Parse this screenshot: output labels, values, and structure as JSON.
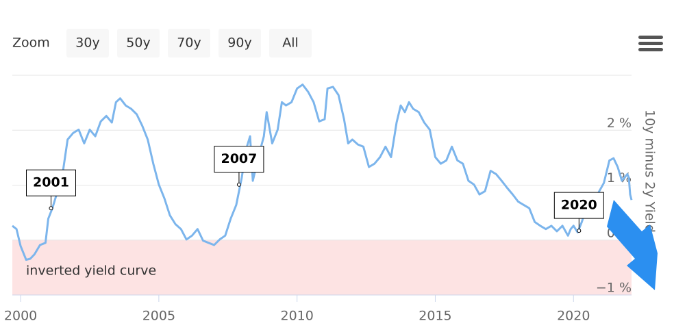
{
  "toolbar": {
    "label": "Zoom",
    "buttons": [
      "30y",
      "50y",
      "70y",
      "90y",
      "All"
    ]
  },
  "chart_data": {
    "type": "line",
    "y_axis_title": "10y minus 2y Yield",
    "color": "#7cb5ec",
    "x": [
      1999.7,
      1999.85,
      2000.0,
      2000.2,
      2000.35,
      2000.5,
      2000.7,
      2000.9,
      2001.0,
      2001.15,
      2001.3,
      2001.5,
      2001.7,
      2001.9,
      2002.1,
      2002.3,
      2002.5,
      2002.7,
      2002.9,
      2003.1,
      2003.3,
      2003.45,
      2003.6,
      2003.8,
      2004.0,
      2004.2,
      2004.4,
      2004.6,
      2004.8,
      2005.0,
      2005.2,
      2005.4,
      2005.6,
      2005.8,
      2006.0,
      2006.2,
      2006.4,
      2006.6,
      2006.8,
      2007.0,
      2007.2,
      2007.4,
      2007.6,
      2007.8,
      2008.0,
      2008.15,
      2008.3,
      2008.4,
      2008.6,
      2008.8,
      2008.9,
      2009.1,
      2009.3,
      2009.45,
      2009.6,
      2009.8,
      2010.0,
      2010.2,
      2010.4,
      2010.6,
      2010.8,
      2011.0,
      2011.1,
      2011.3,
      2011.5,
      2011.7,
      2011.85,
      2012.0,
      2012.2,
      2012.4,
      2012.6,
      2012.8,
      2013.0,
      2013.2,
      2013.4,
      2013.6,
      2013.75,
      2013.9,
      2014.05,
      2014.2,
      2014.4,
      2014.6,
      2014.8,
      2015.0,
      2015.2,
      2015.4,
      2015.6,
      2015.8,
      2016.0,
      2016.2,
      2016.4,
      2016.6,
      2016.8,
      2017.0,
      2017.2,
      2017.4,
      2017.6,
      2017.8,
      2018.0,
      2018.2,
      2018.4,
      2018.6,
      2018.8,
      2019.0,
      2019.2,
      2019.4,
      2019.6,
      2019.8,
      2019.9,
      2020.0,
      2020.15,
      2020.3,
      2020.5,
      2020.7,
      2020.9,
      2021.1,
      2021.3,
      2021.45,
      2021.6,
      2021.75,
      2021.85,
      2021.95,
      2022.0,
      2022.05,
      2022.1
    ],
    "values": [
      0.26,
      0.2,
      -0.11,
      -0.36,
      -0.34,
      -0.26,
      -0.09,
      -0.05,
      0.39,
      0.58,
      0.83,
      1.14,
      1.83,
      1.95,
      2.01,
      1.76,
      2.01,
      1.89,
      2.16,
      2.26,
      2.14,
      2.51,
      2.58,
      2.45,
      2.39,
      2.29,
      2.08,
      1.83,
      1.39,
      1.01,
      0.76,
      0.45,
      0.29,
      0.2,
      0.01,
      0.08,
      0.2,
      -0.01,
      -0.05,
      -0.09,
      0.01,
      0.08,
      0.39,
      0.64,
      1.14,
      1.64,
      1.89,
      1.08,
      1.51,
      1.89,
      2.33,
      1.76,
      2.01,
      2.51,
      2.45,
      2.51,
      2.76,
      2.83,
      2.7,
      2.51,
      2.16,
      2.2,
      2.76,
      2.79,
      2.64,
      2.2,
      1.76,
      1.83,
      1.74,
      1.7,
      1.33,
      1.39,
      1.51,
      1.7,
      1.51,
      2.14,
      2.45,
      2.33,
      2.51,
      2.39,
      2.33,
      2.14,
      2.01,
      1.51,
      1.39,
      1.45,
      1.7,
      1.45,
      1.39,
      1.08,
      1.01,
      0.83,
      0.89,
      1.26,
      1.2,
      1.08,
      0.95,
      0.83,
      0.7,
      0.64,
      0.58,
      0.33,
      0.26,
      0.2,
      0.26,
      0.16,
      0.26,
      0.08,
      0.2,
      0.26,
      0.14,
      0.33,
      0.64,
      0.76,
      0.86,
      1.04,
      1.45,
      1.49,
      1.33,
      1.08,
      1.14,
      1.2,
      1.14,
      0.83,
      0.73
    ],
    "xlim": [
      1999.7,
      2022.1
    ],
    "ylim": [
      -1,
      3
    ],
    "xticks": [
      2000,
      2005,
      2010,
      2015,
      2020
    ],
    "yticks": [
      {
        "value": -1,
        "label": "−1 %"
      },
      {
        "value": 0,
        "label": "0 %"
      },
      {
        "value": 1,
        "label": "1 %"
      },
      {
        "value": 2,
        "label": "2 %"
      }
    ],
    "grid": true,
    "plot_bands": [
      {
        "from": -1,
        "to": 0,
        "label": "inverted yield curve",
        "color": "#fde3e3"
      }
    ],
    "annotations": [
      {
        "text": "2001",
        "x": 2001.1,
        "y": 0.58
      },
      {
        "text": "2007",
        "x": 2007.9,
        "y": 1.01
      },
      {
        "text": "2020",
        "x": 2020.2,
        "y": 0.17
      }
    ]
  }
}
